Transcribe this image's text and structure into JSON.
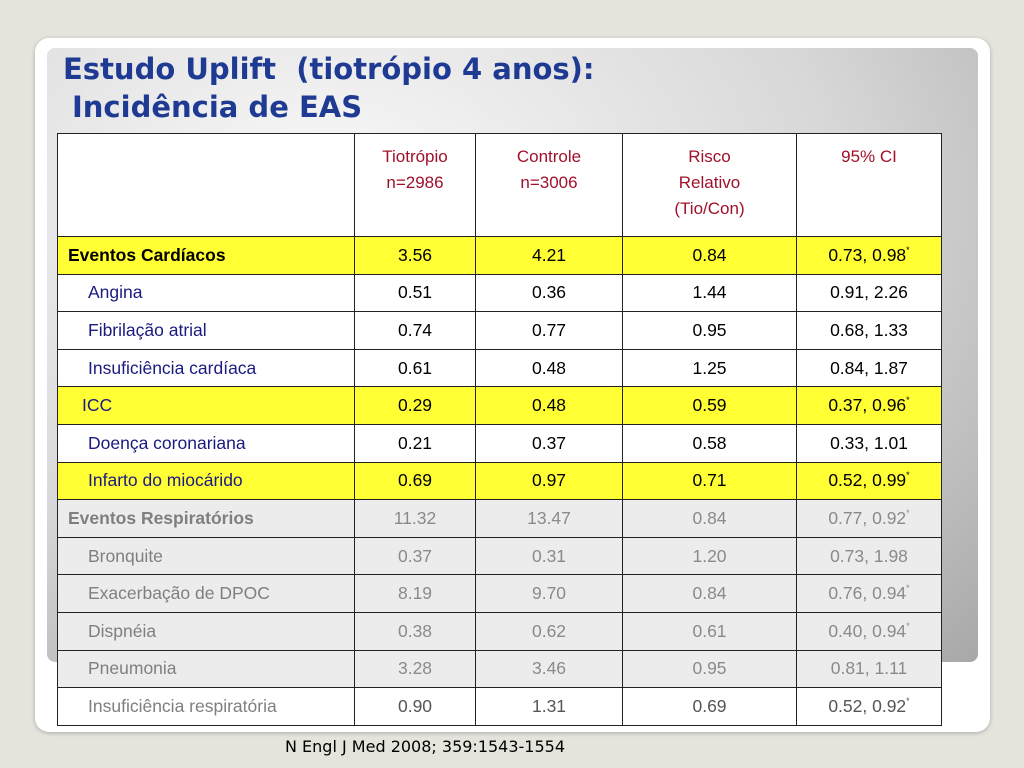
{
  "header": {
    "title_line1": "Estudo Uplift  (tiotrópio 4 anos):",
    "title_line2": "Incidência de EAS"
  },
  "table": {
    "columns": [
      "Tiotrópio\nn=2986",
      "Controle\nn=3006",
      "Risco\n   Relativo\n(Tio/Con)",
      "95% CI"
    ],
    "rows": [
      {
        "cells": [
          "Eventos Cardíacos",
          "3.56",
          "4.21",
          "0.84",
          "0.73, 0.98"
        ],
        "note": "*"
      },
      {
        "cells": [
          "Angina",
          "0.51",
          "0.36",
          "1.44",
          "0.91, 2.26"
        ]
      },
      {
        "cells": [
          "Fibrilação atrial",
          "0.74",
          "0.77",
          "0.95",
          "0.68, 1.33"
        ]
      },
      {
        "cells": [
          "Insuficiência cardíaca",
          "0.61",
          "0.48",
          "1.25",
          "0.84, 1.87"
        ]
      },
      {
        "cells": [
          "ICC",
          "0.29",
          "0.48",
          "0.59",
          "0.37, 0.96"
        ],
        "note": "*"
      },
      {
        "cells": [
          "Doença coronariana",
          "0.21",
          "0.37",
          "0.58",
          "0.33, 1.01"
        ]
      },
      {
        "cells": [
          "Infarto do miocárido",
          "0.69",
          "0.97",
          "0.71",
          "0.52, 0.99"
        ],
        "note": "*"
      },
      {
        "cells": [
          "Eventos Respiratórios",
          "11.32",
          "13.47",
          "0.84",
          "0.77, 0.92"
        ],
        "note": "*"
      },
      {
        "cells": [
          "Bronquite",
          "0.37",
          "0.31",
          "1.20",
          "0.73, 1.98"
        ]
      },
      {
        "cells": [
          "Exacerbação de DPOC",
          "8.19",
          "9.70",
          "0.84",
          "0.76, 0.94"
        ],
        "note": "*"
      },
      {
        "cells": [
          "Dispnéia",
          "0.38",
          "0.62",
          "0.61",
          "0.40, 0.94"
        ],
        "note": "*"
      },
      {
        "cells": [
          "Pneumonia",
          "3.28",
          "3.46",
          "0.95",
          "0.81, 1.11"
        ]
      },
      {
        "cells": [
          "Insuficiência respiratória",
          "0.90",
          "1.31",
          "0.69",
          "0.52, 0.92"
        ],
        "note": "*"
      }
    ]
  },
  "footer": {
    "citation": "N Engl J Med 2008; 359:1543-1554"
  }
}
